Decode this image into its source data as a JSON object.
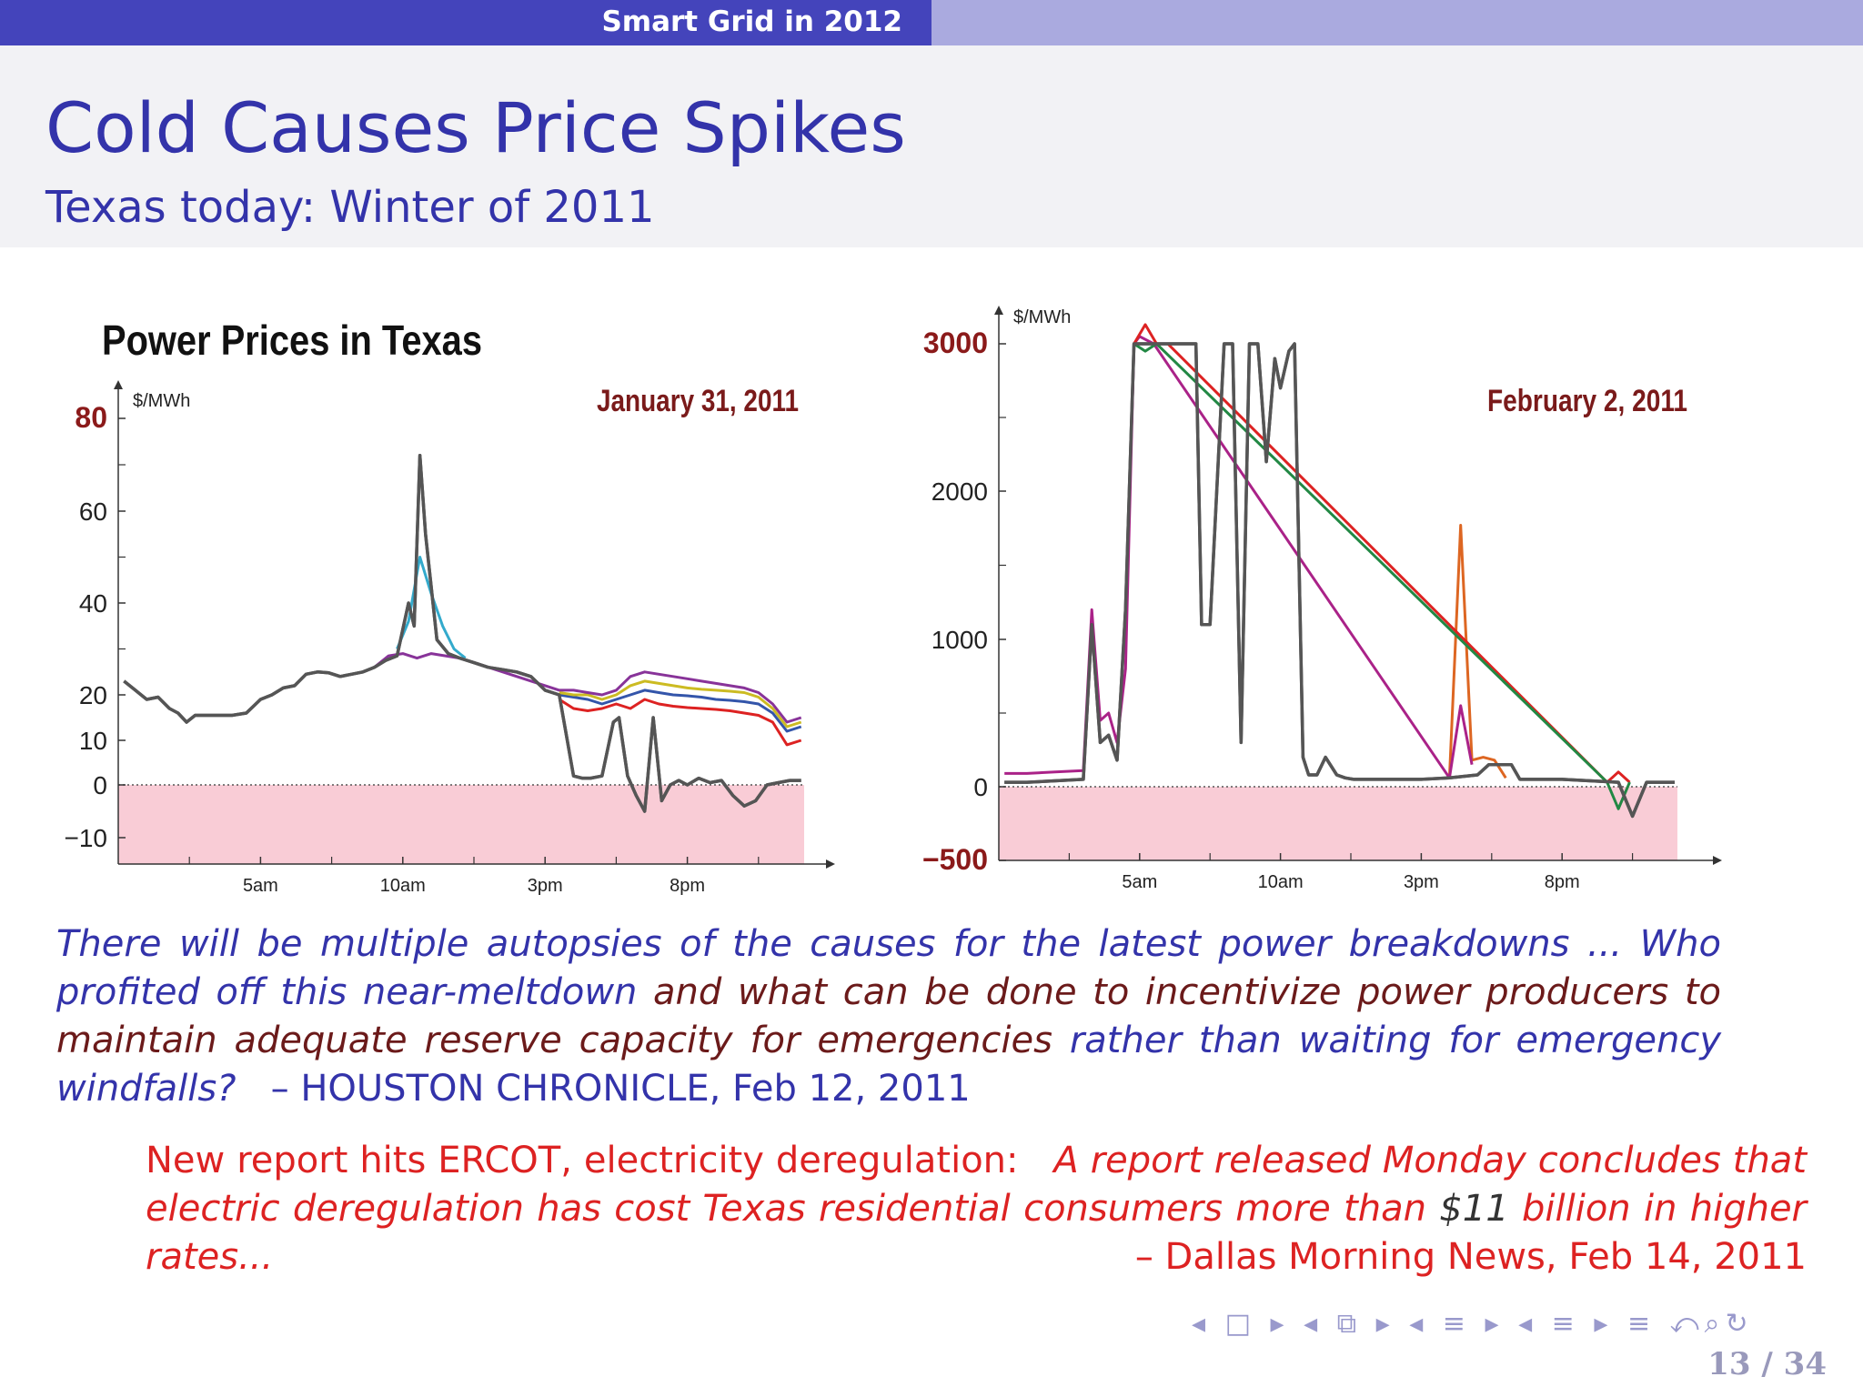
{
  "header": {
    "section_title": "Smart Grid in 2012"
  },
  "slide": {
    "title": "Cold Causes Price Spikes",
    "subtitle": "Texas today: Winter of 2011"
  },
  "chart_data": [
    {
      "type": "line",
      "title": "Power Prices in Texas",
      "subtitle": "January 31, 2011",
      "ylabel": "$/MWh",
      "ylim": [
        -17,
        80
      ],
      "y_ticks": [
        -10,
        0,
        10,
        20,
        40,
        60,
        80
      ],
      "y_tick_labels": [
        "−10",
        "0",
        "10",
        "20",
        "40",
        "60",
        "80"
      ],
      "x_ticks": [
        5,
        10,
        15,
        20
      ],
      "x_tick_labels": [
        "5am",
        "10am",
        "3pm",
        "8pm"
      ],
      "xlim": [
        0,
        25
      ],
      "negative_region": "pink",
      "series": [
        {
          "color": "#555555",
          "x": [
            0.2,
            0.6,
            1,
            1.4,
            1.8,
            2.1,
            2.4,
            2.7,
            3,
            3.5,
            4,
            4.5,
            5,
            5.4,
            5.8,
            6.2,
            6.6,
            7,
            7.4,
            7.8,
            8.2,
            8.6,
            9,
            9.4,
            9.8,
            10.2,
            10.4,
            10.6,
            10.8,
            11.2,
            11.6,
            12,
            12.5,
            13,
            13.5,
            14,
            14.5,
            15,
            15.5,
            16,
            16.3,
            16.6,
            17,
            17.4,
            17.6,
            17.9,
            18.2,
            18.5,
            18.8,
            19.1,
            19.4,
            19.7,
            20,
            20.4,
            20.8,
            21.2,
            21.6,
            22,
            22.4,
            22.8,
            23.2,
            23.6,
            24
          ],
          "values": [
            23,
            21,
            19,
            19.5,
            17,
            16,
            14,
            15.5,
            15.5,
            15.5,
            15.5,
            16,
            19,
            20,
            21.5,
            22,
            24.5,
            25,
            24.8,
            24,
            24.5,
            25,
            26,
            27.5,
            28.5,
            40,
            35,
            72,
            55,
            32,
            29,
            28,
            27,
            26,
            25.5,
            25,
            24,
            21,
            20,
            2,
            1.5,
            1.5,
            2,
            14,
            15,
            2,
            -2,
            -5,
            15,
            -3,
            0,
            1,
            0,
            1.5,
            0.5,
            1,
            -2,
            -4,
            -3,
            0,
            0.5,
            1,
            1
          ]
        },
        {
          "color": "#dd2222",
          "x": [
            15.5,
            16,
            16.5,
            17,
            17.5,
            18,
            18.5,
            19,
            19.5,
            20,
            20.5,
            21,
            21.5,
            22,
            22.5,
            23,
            23.5,
            24
          ],
          "values": [
            19,
            17,
            16.5,
            17,
            18,
            17,
            19,
            18,
            17.5,
            17.2,
            17,
            16.8,
            16.5,
            16,
            15.5,
            14,
            9,
            10
          ]
        },
        {
          "color": "#3355aa",
          "x": [
            15.5,
            16,
            16.5,
            17,
            17.5,
            18,
            18.5,
            19,
            19.5,
            20,
            20.5,
            21,
            21.5,
            22,
            22.5,
            23,
            23.5,
            24
          ],
          "values": [
            20,
            19.5,
            19,
            18,
            19,
            20,
            21,
            20.5,
            20,
            19.8,
            19.5,
            19,
            18.8,
            18.5,
            18,
            16,
            12,
            13
          ]
        },
        {
          "color": "#ccbb22",
          "x": [
            15.5,
            16,
            16.5,
            17,
            17.5,
            18,
            18.5,
            19,
            19.5,
            20,
            20.5,
            21,
            21.5,
            22,
            22.5,
            23,
            23.5,
            24
          ],
          "values": [
            20.5,
            20,
            20,
            19,
            20,
            22,
            23,
            22.5,
            22,
            21.5,
            21.2,
            21,
            20.8,
            20.5,
            19.5,
            17,
            13,
            14
          ]
        },
        {
          "color": "#883399",
          "x": [
            9,
            9.5,
            10,
            10.5,
            11,
            11.5,
            12,
            12.5,
            15.5,
            16,
            16.5,
            17,
            17.5,
            18,
            18.5,
            19,
            19.5,
            20,
            20.5,
            21,
            21.5,
            22,
            22.5,
            23,
            23.5,
            24
          ],
          "values": [
            26,
            28.5,
            29,
            28,
            29,
            28.5,
            28,
            27,
            21,
            21,
            20.5,
            20,
            21,
            24,
            25,
            24.5,
            24,
            23.5,
            23,
            22.5,
            22,
            21.5,
            20.5,
            18,
            14,
            15
          ]
        },
        {
          "color": "#33aacc",
          "x": [
            9.8,
            10.2,
            10.6,
            11,
            11.4,
            11.8,
            12.2
          ],
          "values": [
            30,
            36,
            50,
            42,
            35,
            30,
            28
          ]
        }
      ]
    },
    {
      "type": "line",
      "subtitle": "February 2, 2011",
      "ylabel": "$/MWh",
      "ylim": [
        -500,
        3100
      ],
      "y_ticks": [
        -500,
        0,
        1000,
        2000,
        3000
      ],
      "y_tick_labels": [
        "−500",
        "0",
        "1000",
        "2000",
        "3000"
      ],
      "x_ticks": [
        5,
        10,
        15,
        20
      ],
      "x_tick_labels": [
        "5am",
        "10am",
        "3pm",
        "8pm"
      ],
      "xlim": [
        0,
        25
      ],
      "negative_region": "pink",
      "series": [
        {
          "color": "#555555",
          "x": [
            0.2,
            1,
            2,
            3,
            3.3,
            3.6,
            3.9,
            4.2,
            4.5,
            4.8,
            5,
            5.5,
            6,
            6.5,
            7,
            7.2,
            7.5,
            8,
            8.3,
            8.6,
            8.9,
            9.2,
            9.5,
            9.8,
            10,
            10.3,
            10.5,
            10.8,
            11,
            11.3,
            11.6,
            12,
            12.3,
            12.6,
            13,
            13.5,
            14,
            15,
            16,
            17,
            17.4,
            17.8,
            18.2,
            18.5,
            19,
            20,
            21,
            22,
            22.5,
            23,
            23.5,
            24
          ],
          "values": [
            30,
            30,
            40,
            50,
            1100,
            300,
            350,
            180,
            1200,
            3000,
            3000,
            3000,
            3000,
            3000,
            3000,
            1100,
            1100,
            3000,
            3000,
            300,
            3000,
            3000,
            2200,
            2900,
            2700,
            2950,
            3000,
            200,
            80,
            80,
            200,
            80,
            60,
            50,
            50,
            50,
            50,
            50,
            60,
            80,
            150,
            150,
            150,
            50,
            50,
            50,
            40,
            30,
            -200,
            30,
            30,
            30
          ]
        },
        {
          "color": "#dd6622",
          "x": [
            16,
            16.4,
            16.8,
            17.2,
            17.6,
            18
          ],
          "values": [
            60,
            1770,
            180,
            200,
            180,
            60
          ]
        },
        {
          "color": "#aa2288",
          "x": [
            0.2,
            1,
            2,
            3,
            3.3,
            3.6,
            3.9,
            4.2,
            4.5,
            4.8,
            5,
            5.5,
            16,
            16.4,
            16.8
          ],
          "values": [
            90,
            90,
            100,
            110,
            1200,
            450,
            500,
            300,
            800,
            3000,
            3050,
            3000,
            60,
            550,
            150
          ]
        },
        {
          "color": "#dd2222",
          "x": [
            4.8,
            5.2,
            5.6,
            6,
            21.6,
            22,
            22.4
          ],
          "values": [
            3000,
            3130,
            3000,
            3000,
            30,
            100,
            30
          ]
        },
        {
          "color": "#228844",
          "x": [
            4.8,
            5.2,
            5.6,
            21.6,
            22,
            22.4
          ],
          "values": [
            3000,
            2950,
            3000,
            30,
            -150,
            30
          ]
        }
      ]
    }
  ],
  "quote1": {
    "part1": "There will be multiple autopsies of the causes for the latest power breakdowns ... Who profited off this near-meltdown",
    "part2": "and what can be done to incentivize power producers to maintain adequate reserve capacity for emergencies",
    "part3": "rather than waiting for emergency windfalls?",
    "dash": "–",
    "source": "HOUSTON CHRONICLE, Feb 12, 2011"
  },
  "quote2": {
    "lead": "New report hits ERCOT, electricity deregulation:",
    "body1": "A report released Monday concludes that electric deregulation has cost Texas residential consumers more than",
    "amount": "$11",
    "body2": "billion in higher rates...",
    "source": "– Dallas Morning News, Feb 14, 2011"
  },
  "nav": {
    "symbols": "◂ □ ▸ ◂ ⧉ ▸ ◂ ≡ ▸ ◂ ≡ ▸  ≡  ⤺⌕↻"
  },
  "page": {
    "label": "13 / 34"
  }
}
